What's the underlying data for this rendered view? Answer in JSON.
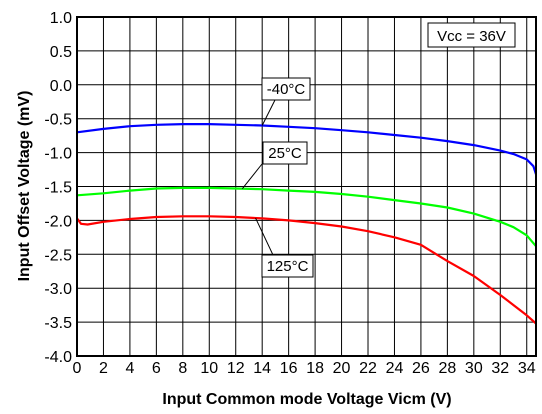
{
  "chart_data": {
    "type": "line",
    "xlabel": "Input Common mode Voltage Vicm (V)",
    "ylabel": "Input Offset Voltage  (mV)",
    "xlim": [
      0,
      34.7
    ],
    "ylim": [
      -4.0,
      1.0
    ],
    "x_ticks": [
      "0",
      "2",
      "4",
      "6",
      "8",
      "10",
      "12",
      "14",
      "16",
      "18",
      "20",
      "22",
      "24",
      "26",
      "28",
      "30",
      "32",
      "34"
    ],
    "y_ticks": [
      "1.0",
      "0.5",
      "0.0",
      "-0.5",
      "-1.0",
      "-1.5",
      "-2.0",
      "-2.5",
      "-3.0",
      "-3.5",
      "-4.0"
    ],
    "grid": true,
    "annotation": "Vcc = 36V",
    "series": [
      {
        "name": "-40°C",
        "color": "#0000ff",
        "x": [
          0,
          2,
          4,
          6,
          8,
          10,
          12,
          14,
          16,
          18,
          20,
          22,
          24,
          26,
          28,
          30,
          32,
          33,
          34,
          34.5,
          34.7
        ],
        "y": [
          -0.7,
          -0.65,
          -0.61,
          -0.59,
          -0.58,
          -0.58,
          -0.59,
          -0.6,
          -0.62,
          -0.64,
          -0.67,
          -0.7,
          -0.74,
          -0.78,
          -0.83,
          -0.89,
          -0.97,
          -1.02,
          -1.1,
          -1.2,
          -1.32
        ]
      },
      {
        "name": "25°C",
        "color": "#00ff00",
        "x": [
          0,
          2,
          4,
          6,
          8,
          10,
          12,
          14,
          16,
          18,
          20,
          22,
          24,
          26,
          28,
          30,
          32,
          33,
          34,
          34.7
        ],
        "y": [
          -1.63,
          -1.6,
          -1.56,
          -1.53,
          -1.52,
          -1.52,
          -1.53,
          -1.54,
          -1.56,
          -1.58,
          -1.61,
          -1.65,
          -1.7,
          -1.75,
          -1.81,
          -1.9,
          -2.02,
          -2.1,
          -2.22,
          -2.38
        ]
      },
      {
        "name": "125°C",
        "color": "#ff0000",
        "x": [
          0,
          0.3,
          0.8,
          2,
          4,
          6,
          8,
          10,
          12,
          14,
          16,
          18,
          20,
          22,
          24,
          26,
          28,
          30,
          32,
          33,
          34,
          34.7
        ],
        "y": [
          -1.97,
          -2.05,
          -2.06,
          -2.02,
          -1.98,
          -1.95,
          -1.94,
          -1.94,
          -1.95,
          -1.97,
          -2.0,
          -2.04,
          -2.09,
          -2.16,
          -2.25,
          -2.36,
          -2.6,
          -2.82,
          -3.1,
          -3.25,
          -3.4,
          -3.52
        ]
      }
    ]
  }
}
